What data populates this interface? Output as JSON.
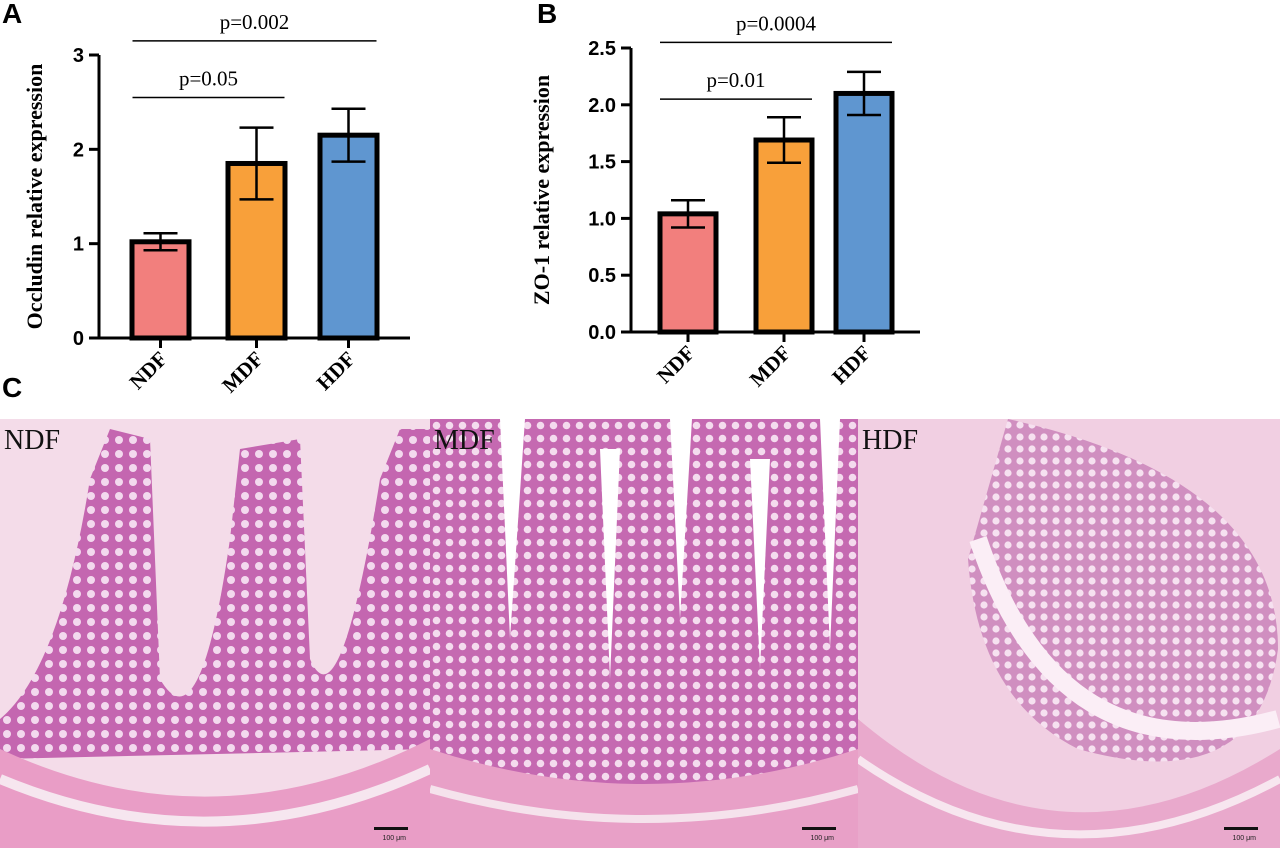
{
  "panels": {
    "a": "A",
    "b": "B",
    "c": "C"
  },
  "chart_data": [
    {
      "type": "bar",
      "ylabel": "Occludin relative expression",
      "categories": [
        "NDF",
        "MDF",
        "HDF"
      ],
      "values": [
        1.02,
        1.85,
        2.15
      ],
      "errors": [
        0.09,
        0.38,
        0.28
      ],
      "bar_colors": [
        "#f27f7d",
        "#f8a03a",
        "#5f96d0"
      ],
      "ylim": [
        0,
        3
      ],
      "yticks": [
        0,
        1,
        2,
        3
      ],
      "ytick_labels": [
        "0",
        "1",
        "2",
        "3"
      ],
      "comparisons": [
        {
          "from": 0,
          "to": 1,
          "label": "p=0.05",
          "y": 2.55
        },
        {
          "from": 0,
          "to": 2,
          "label": "p=0.002",
          "y": 3.15
        }
      ]
    },
    {
      "type": "bar",
      "ylabel": "ZO-1 relative expression",
      "categories": [
        "NDF",
        "MDF",
        "HDF"
      ],
      "values": [
        1.04,
        1.69,
        2.1
      ],
      "errors": [
        0.12,
        0.2,
        0.19
      ],
      "bar_colors": [
        "#f27f7d",
        "#f8a03a",
        "#5f96d0"
      ],
      "ylim": [
        0,
        2.5
      ],
      "yticks": [
        0,
        0.5,
        1.0,
        1.5,
        2.0,
        2.5
      ],
      "ytick_labels": [
        "0.0",
        "0.5",
        "1.0",
        "1.5",
        "2.0",
        "2.5"
      ],
      "comparisons": [
        {
          "from": 0,
          "to": 1,
          "label": "p=0.01",
          "y": 2.05
        },
        {
          "from": 0,
          "to": 2,
          "label": "p=0.0004",
          "y": 2.55
        }
      ]
    }
  ],
  "histology": [
    {
      "label": "NDF",
      "scale": "100 μm"
    },
    {
      "label": "MDF",
      "scale": "100 μm"
    },
    {
      "label": "HDF",
      "scale": "100 μm"
    }
  ]
}
